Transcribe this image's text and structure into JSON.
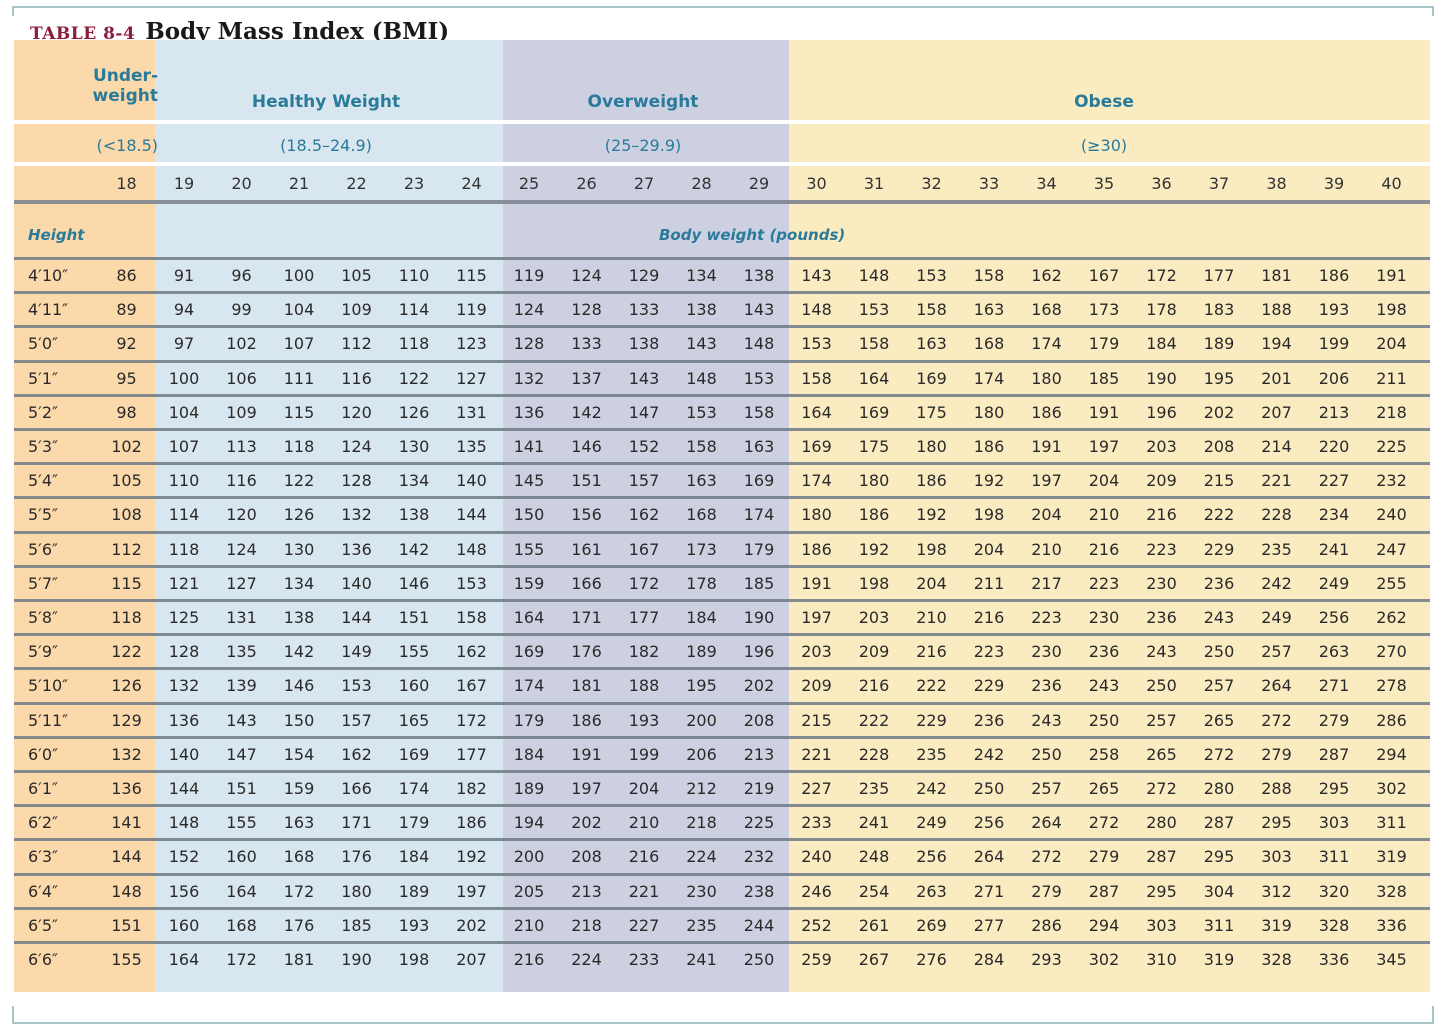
{
  "title": {
    "table_number": "TABLE 8-4",
    "text": "Body Mass Index (BMI)"
  },
  "categories": [
    {
      "name": "Under-weight",
      "line1": "Under-",
      "line2": "weight",
      "range": "(<18.5)",
      "color": "#fbd9ab"
    },
    {
      "name": "Healthy Weight",
      "range": "(18.5–24.9)",
      "color": "#d8e6ef"
    },
    {
      "name": "Overweight",
      "range": "(25–29.9)",
      "color": "#cdd0e1"
    },
    {
      "name": "Obese",
      "range": "(≥30)",
      "color": "#fbebc0"
    }
  ],
  "bmi_values": [
    "18",
    "19",
    "20",
    "21",
    "22",
    "23",
    "24",
    "25",
    "26",
    "27",
    "28",
    "29",
    "30",
    "31",
    "32",
    "33",
    "34",
    "35",
    "36",
    "37",
    "38",
    "39",
    "40"
  ],
  "labels": {
    "height": "Height",
    "body_weight": "Body weight (pounds)"
  },
  "colors": {
    "label_blue": "#2a7a9a",
    "title_red": "#8c1d3a",
    "text": "#2a2a2a"
  },
  "rows": [
    {
      "height": "4′10″",
      "weights": [
        "86",
        "91",
        "96",
        "100",
        "105",
        "110",
        "115",
        "119",
        "124",
        "129",
        "134",
        "138",
        "143",
        "148",
        "153",
        "158",
        "162",
        "167",
        "172",
        "177",
        "181",
        "186",
        "191"
      ]
    },
    {
      "height": "4′11″",
      "weights": [
        "89",
        "94",
        "99",
        "104",
        "109",
        "114",
        "119",
        "124",
        "128",
        "133",
        "138",
        "143",
        "148",
        "153",
        "158",
        "163",
        "168",
        "173",
        "178",
        "183",
        "188",
        "193",
        "198"
      ]
    },
    {
      "height": "5′0″",
      "weights": [
        "92",
        "97",
        "102",
        "107",
        "112",
        "118",
        "123",
        "128",
        "133",
        "138",
        "143",
        "148",
        "153",
        "158",
        "163",
        "168",
        "174",
        "179",
        "184",
        "189",
        "194",
        "199",
        "204"
      ]
    },
    {
      "height": "5′1″",
      "weights": [
        "95",
        "100",
        "106",
        "111",
        "116",
        "122",
        "127",
        "132",
        "137",
        "143",
        "148",
        "153",
        "158",
        "164",
        "169",
        "174",
        "180",
        "185",
        "190",
        "195",
        "201",
        "206",
        "211"
      ]
    },
    {
      "height": "5′2″",
      "weights": [
        "98",
        "104",
        "109",
        "115",
        "120",
        "126",
        "131",
        "136",
        "142",
        "147",
        "153",
        "158",
        "164",
        "169",
        "175",
        "180",
        "186",
        "191",
        "196",
        "202",
        "207",
        "213",
        "218"
      ]
    },
    {
      "height": "5′3″",
      "weights": [
        "102",
        "107",
        "113",
        "118",
        "124",
        "130",
        "135",
        "141",
        "146",
        "152",
        "158",
        "163",
        "169",
        "175",
        "180",
        "186",
        "191",
        "197",
        "203",
        "208",
        "214",
        "220",
        "225"
      ]
    },
    {
      "height": "5′4″",
      "weights": [
        "105",
        "110",
        "116",
        "122",
        "128",
        "134",
        "140",
        "145",
        "151",
        "157",
        "163",
        "169",
        "174",
        "180",
        "186",
        "192",
        "197",
        "204",
        "209",
        "215",
        "221",
        "227",
        "232"
      ]
    },
    {
      "height": "5′5″",
      "weights": [
        "108",
        "114",
        "120",
        "126",
        "132",
        "138",
        "144",
        "150",
        "156",
        "162",
        "168",
        "174",
        "180",
        "186",
        "192",
        "198",
        "204",
        "210",
        "216",
        "222",
        "228",
        "234",
        "240"
      ]
    },
    {
      "height": "5′6″",
      "weights": [
        "112",
        "118",
        "124",
        "130",
        "136",
        "142",
        "148",
        "155",
        "161",
        "167",
        "173",
        "179",
        "186",
        "192",
        "198",
        "204",
        "210",
        "216",
        "223",
        "229",
        "235",
        "241",
        "247"
      ]
    },
    {
      "height": "5′7″",
      "weights": [
        "115",
        "121",
        "127",
        "134",
        "140",
        "146",
        "153",
        "159",
        "166",
        "172",
        "178",
        "185",
        "191",
        "198",
        "204",
        "211",
        "217",
        "223",
        "230",
        "236",
        "242",
        "249",
        "255"
      ]
    },
    {
      "height": "5′8″",
      "weights": [
        "118",
        "125",
        "131",
        "138",
        "144",
        "151",
        "158",
        "164",
        "171",
        "177",
        "184",
        "190",
        "197",
        "203",
        "210",
        "216",
        "223",
        "230",
        "236",
        "243",
        "249",
        "256",
        "262"
      ]
    },
    {
      "height": "5′9″",
      "weights": [
        "122",
        "128",
        "135",
        "142",
        "149",
        "155",
        "162",
        "169",
        "176",
        "182",
        "189",
        "196",
        "203",
        "209",
        "216",
        "223",
        "230",
        "236",
        "243",
        "250",
        "257",
        "263",
        "270"
      ]
    },
    {
      "height": "5′10″",
      "weights": [
        "126",
        "132",
        "139",
        "146",
        "153",
        "160",
        "167",
        "174",
        "181",
        "188",
        "195",
        "202",
        "209",
        "216",
        "222",
        "229",
        "236",
        "243",
        "250",
        "257",
        "264",
        "271",
        "278"
      ]
    },
    {
      "height": "5′11″",
      "weights": [
        "129",
        "136",
        "143",
        "150",
        "157",
        "165",
        "172",
        "179",
        "186",
        "193",
        "200",
        "208",
        "215",
        "222",
        "229",
        "236",
        "243",
        "250",
        "257",
        "265",
        "272",
        "279",
        "286"
      ]
    },
    {
      "height": "6′0″",
      "weights": [
        "132",
        "140",
        "147",
        "154",
        "162",
        "169",
        "177",
        "184",
        "191",
        "199",
        "206",
        "213",
        "221",
        "228",
        "235",
        "242",
        "250",
        "258",
        "265",
        "272",
        "279",
        "287",
        "294"
      ]
    },
    {
      "height": "6′1″",
      "weights": [
        "136",
        "144",
        "151",
        "159",
        "166",
        "174",
        "182",
        "189",
        "197",
        "204",
        "212",
        "219",
        "227",
        "235",
        "242",
        "250",
        "257",
        "265",
        "272",
        "280",
        "288",
        "295",
        "302"
      ]
    },
    {
      "height": "6′2″",
      "weights": [
        "141",
        "148",
        "155",
        "163",
        "171",
        "179",
        "186",
        "194",
        "202",
        "210",
        "218",
        "225",
        "233",
        "241",
        "249",
        "256",
        "264",
        "272",
        "280",
        "287",
        "295",
        "303",
        "311"
      ]
    },
    {
      "height": "6′3″",
      "weights": [
        "144",
        "152",
        "160",
        "168",
        "176",
        "184",
        "192",
        "200",
        "208",
        "216",
        "224",
        "232",
        "240",
        "248",
        "256",
        "264",
        "272",
        "279",
        "287",
        "295",
        "303",
        "311",
        "319"
      ]
    },
    {
      "height": "6′4″",
      "weights": [
        "148",
        "156",
        "164",
        "172",
        "180",
        "189",
        "197",
        "205",
        "213",
        "221",
        "230",
        "238",
        "246",
        "254",
        "263",
        "271",
        "279",
        "287",
        "295",
        "304",
        "312",
        "320",
        "328"
      ]
    },
    {
      "height": "6′5″",
      "weights": [
        "151",
        "160",
        "168",
        "176",
        "185",
        "193",
        "202",
        "210",
        "218",
        "227",
        "235",
        "244",
        "252",
        "261",
        "269",
        "277",
        "286",
        "294",
        "303",
        "311",
        "319",
        "328",
        "336"
      ]
    },
    {
      "height": "6′6″",
      "weights": [
        "155",
        "164",
        "172",
        "181",
        "190",
        "198",
        "207",
        "216",
        "224",
        "233",
        "241",
        "250",
        "259",
        "267",
        "276",
        "284",
        "293",
        "302",
        "310",
        "319",
        "328",
        "336",
        "345"
      ]
    }
  ]
}
